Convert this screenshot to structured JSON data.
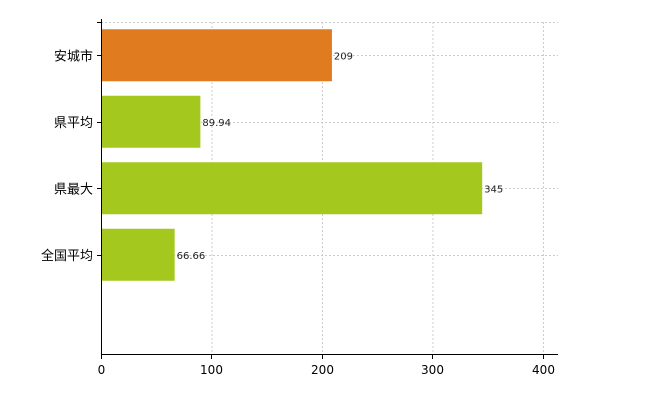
{
  "chart_data": {
    "type": "bar",
    "orientation": "horizontal",
    "categories": [
      "安城市",
      "県平均",
      "県最大",
      "全国平均"
    ],
    "values": [
      209,
      89.94,
      345,
      66.66
    ],
    "value_labels": [
      "209",
      "89.94",
      "345",
      "66.66"
    ],
    "bar_colors": [
      "#e07b20",
      "#a4c81e",
      "#a4c81e",
      "#a4c81e"
    ],
    "xlim": [
      0,
      410
    ],
    "xticks": [
      0,
      100,
      200,
      300,
      400
    ],
    "xtick_labels": [
      "0",
      "100",
      "200",
      "300",
      "400"
    ],
    "grid": true,
    "grid_color": "#cccccc"
  }
}
